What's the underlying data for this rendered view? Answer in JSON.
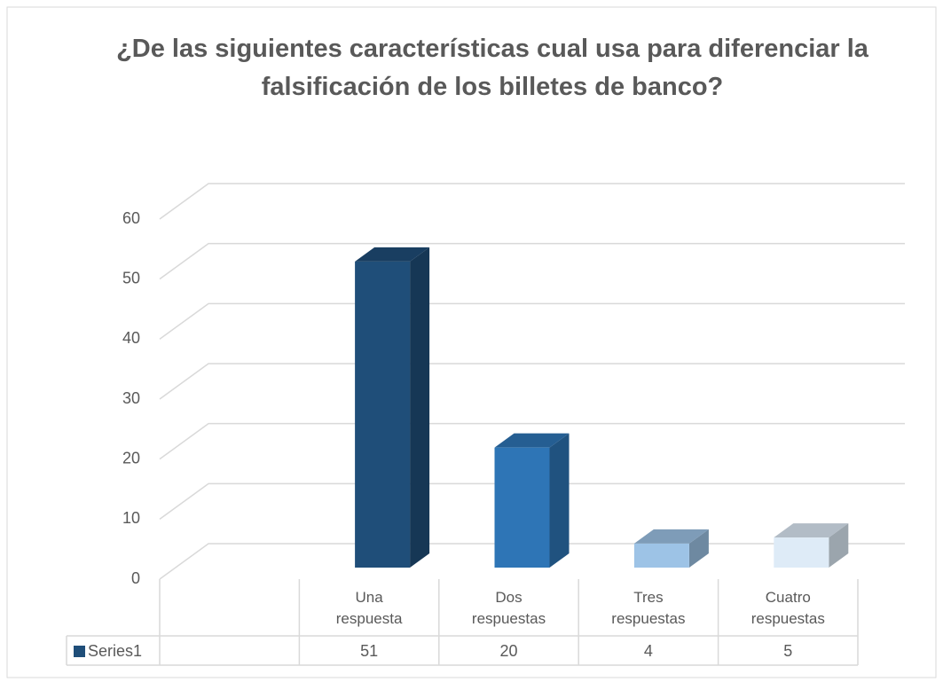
{
  "chart_data": {
    "type": "bar3d",
    "title": "¿De las siguientes características cual usa para diferenciar la falsificación de los billetes de banco?",
    "categories": [
      null,
      "Una respuesta",
      "Dos respuestas",
      "Tres respuestas",
      "Cuatro respuestas"
    ],
    "series": [
      {
        "name": "Series1",
        "color": "#1f4e79",
        "values": [
          null,
          51,
          20,
          4,
          5
        ],
        "colors": [
          null,
          "#1f4e79",
          "#2e75b6",
          "#9dc3e6",
          "#deebf7"
        ]
      }
    ],
    "ylim": [
      0,
      60
    ],
    "yticks": [
      0,
      10,
      20,
      30,
      40,
      50,
      60
    ],
    "grid": true,
    "data_table": true
  }
}
